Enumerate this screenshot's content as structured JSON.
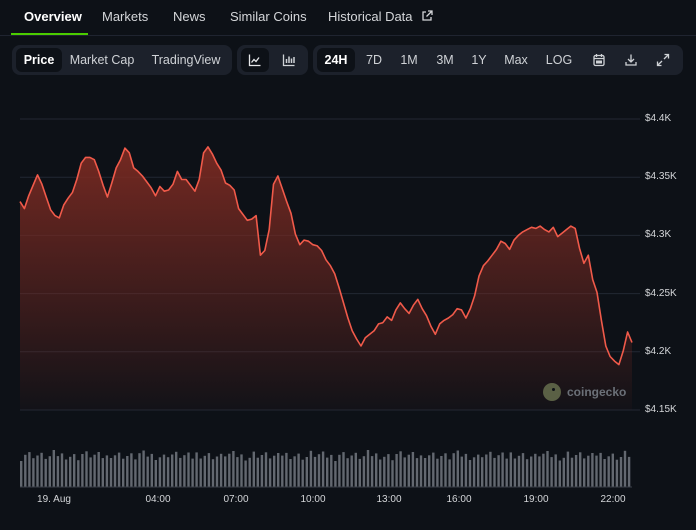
{
  "tabs": {
    "overview": "Overview",
    "markets": "Markets",
    "news": "News",
    "similar_coins": "Similar Coins",
    "historical_data": "Historical Data"
  },
  "toolbar": {
    "price": "Price",
    "market_cap": "Market Cap",
    "tradingview": "TradingView",
    "range_24h": "24H",
    "range_7d": "7D",
    "range_1m": "1M",
    "range_3m": "3M",
    "range_1y": "1Y",
    "range_max": "Max",
    "log": "LOG",
    "selected_tab": "Overview",
    "selected_mode": "Price",
    "selected_range": "24H",
    "selected_chart_style": "line-chart-icon",
    "icons": [
      "line-chart-icon",
      "bar-chart-icon",
      "calendar-icon",
      "download-icon",
      "fullscreen-icon"
    ]
  },
  "watermark": "coingecko",
  "colors": {
    "accent": "#4bcc00",
    "line": "#f05a4a",
    "area_top": "#7a2a22",
    "volume_bar": "#636870",
    "background": "#0d1117"
  },
  "chart_data": {
    "type": "area",
    "series": [
      {
        "values": [
          4.329,
          4.323,
          4.334,
          4.343,
          4.352,
          4.344,
          4.333,
          4.322,
          4.317,
          4.315,
          4.326,
          4.332,
          4.337,
          4.348,
          4.362,
          4.367,
          4.367,
          4.365,
          4.355,
          4.343,
          4.333,
          4.345,
          4.358,
          4.365,
          4.375,
          4.371,
          4.358,
          4.355,
          4.351,
          4.346,
          4.341,
          4.334,
          4.342,
          4.338,
          4.339,
          4.344,
          4.355,
          4.348,
          4.348,
          4.343,
          4.338,
          4.348,
          4.371,
          4.376,
          4.37,
          4.362,
          4.356,
          4.345,
          4.343,
          4.339,
          4.323,
          4.318,
          4.313,
          4.314,
          4.317,
          4.283,
          4.287,
          4.305,
          4.344,
          4.351,
          4.34,
          4.329,
          4.319,
          4.301,
          4.292,
          4.296,
          4.295,
          4.292,
          4.291,
          4.287,
          4.279,
          4.274,
          4.267,
          4.255,
          4.242,
          4.229,
          4.218,
          4.211,
          4.205,
          4.212,
          4.215,
          4.218,
          4.224,
          4.225,
          4.23,
          4.227,
          4.236,
          4.242,
          4.237,
          4.233,
          4.24,
          4.245,
          4.237,
          4.231,
          4.222,
          4.215,
          4.224,
          4.227,
          4.229,
          4.232,
          4.237,
          4.236,
          4.229,
          4.237,
          4.248,
          4.265,
          4.274,
          4.278,
          4.283,
          4.288,
          4.295,
          4.293,
          4.288,
          4.296,
          4.3,
          4.303,
          4.305,
          4.307,
          4.306,
          4.308,
          4.305,
          4.303,
          4.307,
          4.299,
          4.302,
          4.305,
          4.308,
          4.306,
          4.289,
          4.276,
          4.283,
          4.262,
          4.251,
          4.227,
          4.205,
          4.196,
          4.192,
          4.189,
          4.201,
          4.217,
          4.208
        ],
        "x_start": "19 Aug 00:00",
        "x_end": "19 Aug 23:59"
      }
    ],
    "x_tick_labels": [
      "19. Aug",
      "04:00",
      "07:00",
      "10:00",
      "13:00",
      "16:00",
      "19:00",
      "22:00"
    ],
    "y_tick_labels": [
      "$4.4K",
      "$4.35K",
      "$4.3K",
      "$4.25K",
      "$4.2K",
      "$4.15K"
    ],
    "y_ticks": [
      4.4,
      4.35,
      4.3,
      4.25,
      4.2,
      4.15
    ],
    "ylim": [
      4.15,
      4.4
    ],
    "grid": true,
    "volume": true
  }
}
